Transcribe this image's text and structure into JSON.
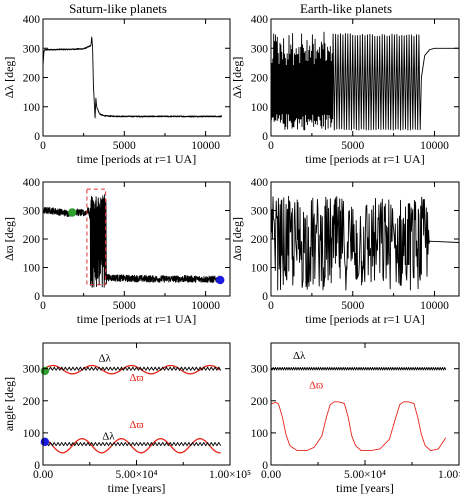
{
  "column_titles": [
    "Saturn-like planets",
    "Earth-like planets"
  ],
  "colors": {
    "black": "#000000",
    "red": "#e8251b",
    "green": "#2e9e2e",
    "blue": "#1a1adf",
    "box": "#e03030"
  },
  "chart_data": [
    {
      "type": "line",
      "panel": "saturn-dlambda",
      "xlabel": "time [periods at r=1 UA]",
      "ylabel": "Δλ [deg]",
      "xlim": [
        0,
        11500
      ],
      "ylim": [
        0,
        400
      ],
      "xticks": [
        0,
        5000,
        10000
      ],
      "yticks": [
        0,
        100,
        200,
        300,
        400
      ],
      "xtick_labels": [
        "0",
        "5000",
        "10000"
      ],
      "ytick_labels": [
        "0",
        "100",
        "200",
        "300",
        "400"
      ],
      "series": [
        {
          "color": "#000000",
          "style": "noisy",
          "x": [
            0,
            60,
            120,
            500,
            1000,
            1500,
            2000,
            2500,
            2800,
            2950,
            3000,
            3050,
            3100,
            3150,
            3200,
            3250,
            3300,
            3400,
            3500,
            3700,
            4000,
            5000,
            7000,
            9000,
            11000
          ],
          "y": [
            240,
            290,
            295,
            295,
            296,
            296,
            297,
            298,
            305,
            310,
            340,
            300,
            170,
            120,
            60,
            130,
            100,
            85,
            75,
            70,
            68,
            67,
            67,
            67,
            67
          ],
          "noise": 2
        }
      ]
    },
    {
      "type": "line",
      "panel": "earth-dlambda",
      "xlabel": "time [periods at r=1 UA]",
      "ylabel": "Δλ [deg]",
      "xlim": [
        0,
        11500
      ],
      "ylim": [
        0,
        400
      ],
      "xticks": [
        0,
        5000,
        10000
      ],
      "yticks": [
        0,
        100,
        200,
        300,
        400
      ],
      "xtick_labels": [
        "0",
        "5000",
        "10000"
      ],
      "ytick_labels": [
        "0",
        "100",
        "200",
        "300",
        "400"
      ],
      "series": [
        {
          "color": "#000000",
          "style": "oscillation",
          "segments": [
            {
              "x0": 0,
              "x1": 3800,
              "period": 55,
              "low": 20,
              "high": 355,
              "jitter": 0.35
            },
            {
              "x0": 3800,
              "x1": 9200,
              "period": 150,
              "low": 20,
              "high": 350,
              "jitter": 0.03
            }
          ],
          "tail": {
            "x": [
              9200,
              9400,
              9700,
              10000,
              11500
            ],
            "y": [
              200,
              275,
              295,
              300,
              300
            ]
          }
        }
      ]
    },
    {
      "type": "line",
      "panel": "saturn-dvarpi",
      "xlabel": "time [periods at r=1 UA]",
      "ylabel": "Δϖ [deg]",
      "xlim": [
        0,
        11500
      ],
      "ylim": [
        0,
        400
      ],
      "xticks": [
        0,
        5000,
        10000
      ],
      "yticks": [
        0,
        100,
        200,
        300,
        400
      ],
      "xtick_labels": [
        "0",
        "5000",
        "10000"
      ],
      "ytick_labels": [
        "0",
        "100",
        "200",
        "300",
        "400"
      ],
      "series": [
        {
          "color": "#000000",
          "style": "noisy",
          "x": [
            0,
            500,
            1000,
            1500,
            2000,
            2500,
            2800,
            3000,
            3200,
            3400,
            3600,
            3800,
            4000,
            5000,
            7000,
            9000,
            11000
          ],
          "y": [
            300,
            300,
            295,
            290,
            295,
            290,
            300,
            250,
            200,
            120,
            80,
            70,
            65,
            62,
            60,
            60,
            58
          ],
          "noise": 12,
          "burst": {
            "x0": 2900,
            "x1": 3900,
            "period": 40,
            "low": 30,
            "high": 360
          }
        }
      ],
      "highlight_box": {
        "x0": 2700,
        "x1": 3850,
        "y0": 40,
        "y1": 375
      },
      "markers": [
        {
          "x": 1800,
          "y": 293,
          "color": "#2e9e2e"
        },
        {
          "x": 10900,
          "y": 56,
          "color": "#1a1adf"
        }
      ]
    },
    {
      "type": "line",
      "panel": "earth-dvarpi",
      "xlabel": "time [periods at r=1 UA]",
      "ylabel": "Δϖ [deg]",
      "xlim": [
        0,
        11500
      ],
      "ylim": [
        0,
        400
      ],
      "xticks": [
        0,
        5000,
        10000
      ],
      "yticks": [
        0,
        100,
        200,
        300,
        400
      ],
      "xtick_labels": [
        "0",
        "5000",
        "10000"
      ],
      "ytick_labels": [
        "0",
        "100",
        "200",
        "300",
        "400"
      ],
      "series": [
        {
          "color": "#000000",
          "style": "chaotic",
          "x0": 0,
          "x1": 9700,
          "low": 20,
          "high": 350,
          "tail": {
            "x": [
              9700,
              10000,
              11500
            ],
            "y": [
              195,
              190,
              190
            ]
          }
        }
      ]
    },
    {
      "type": "line",
      "panel": "saturn-angles",
      "xlabel": "time [years]",
      "ylabel": "angle [deg]",
      "xlim": [
        0,
        100000
      ],
      "ylim": [
        0,
        380
      ],
      "xticks": [
        0,
        50000,
        100000
      ],
      "yticks": [
        0,
        100,
        200,
        300
      ],
      "xtick_labels": [
        "0.00",
        "5.00×10⁴",
        "1.00×10⁵"
      ],
      "ytick_labels": [
        "0",
        "100",
        "200",
        "300"
      ],
      "annotations": [
        {
          "text": "Δλ",
          "x": 33000,
          "y": 322,
          "color": "#000000"
        },
        {
          "text": "Δϖ",
          "x": 50000,
          "y": 262,
          "color": "#e8251b"
        },
        {
          "text": "Δϖ",
          "x": 50000,
          "y": 115,
          "color": "#e8251b"
        },
        {
          "text": "Δλ",
          "x": 35000,
          "y": 80,
          "color": "#000000"
        }
      ],
      "series": [
        {
          "color": "#e8251b",
          "style": "sine",
          "x0": 0,
          "x1": 95000,
          "mean": 297,
          "amp": 13,
          "period": 21000,
          "phase": 0
        },
        {
          "color": "#000000",
          "style": "zigzag",
          "x0": 0,
          "x1": 95000,
          "mean": 300,
          "amp": 5,
          "period": 2000
        },
        {
          "color": "#e8251b",
          "style": "sine",
          "x0": 0,
          "x1": 95000,
          "mean": 60,
          "amp": 22,
          "period": 21000,
          "phase": 1.6
        },
        {
          "color": "#000000",
          "style": "zigzag",
          "x0": 0,
          "x1": 95000,
          "mean": 65,
          "amp": 5,
          "period": 2000
        }
      ],
      "markers": [
        {
          "x": 1000,
          "y": 293,
          "color": "#2e9e2e"
        },
        {
          "x": 1000,
          "y": 72,
          "color": "#1a1adf"
        }
      ]
    },
    {
      "type": "line",
      "panel": "earth-angles",
      "xlabel": "time [years]",
      "ylabel": "",
      "xlim": [
        0,
        100000
      ],
      "ylim": [
        0,
        380
      ],
      "xticks": [
        0,
        50000,
        100000
      ],
      "yticks": [
        0,
        100,
        200,
        300
      ],
      "xtick_labels": [
        "0.00",
        "5.00×10⁴",
        "1.00×10⁵"
      ],
      "ytick_labels": [
        "0",
        "100",
        "200",
        "300"
      ],
      "annotations": [
        {
          "text": "Δλ",
          "x": 15000,
          "y": 330,
          "color": "#000000"
        },
        {
          "text": "Δϖ",
          "x": 24000,
          "y": 238,
          "color": "#e8251b"
        }
      ],
      "series": [
        {
          "color": "#000000",
          "style": "zigzag",
          "x0": 0,
          "x1": 93000,
          "mean": 300,
          "amp": 4,
          "period": 1200
        },
        {
          "color": "#e8251b",
          "style": "line",
          "x": [
            0,
            2500,
            4000,
            6000,
            8000,
            10000,
            14000,
            19000,
            23000,
            27000,
            29500,
            31500,
            33500,
            36000,
            39000,
            41000,
            43000,
            45000,
            48000,
            53000,
            58000,
            63000,
            66500,
            68500,
            70500,
            73000,
            76000,
            78000,
            80000,
            82000,
            85000,
            89000,
            93000
          ],
          "y": [
            190,
            195,
            190,
            150,
            95,
            60,
            45,
            45,
            55,
            90,
            150,
            188,
            197,
            197,
            192,
            150,
            90,
            60,
            45,
            45,
            50,
            80,
            150,
            188,
            197,
            197,
            192,
            150,
            95,
            60,
            45,
            50,
            85
          ]
        }
      ]
    }
  ]
}
